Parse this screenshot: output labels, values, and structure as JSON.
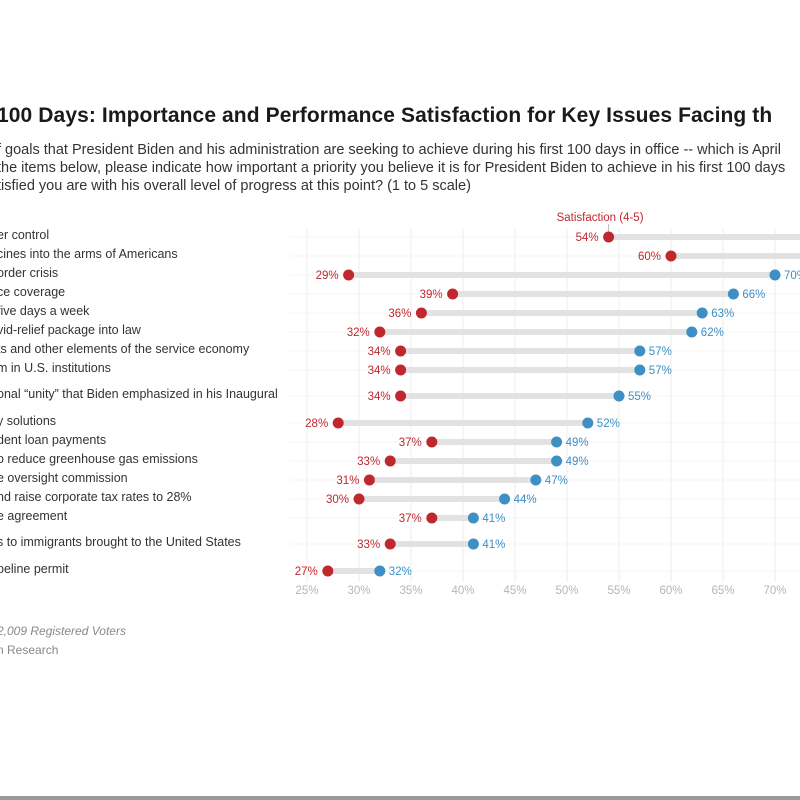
{
  "title": "100 Days: Importance and Performance Satisfaction for Key Issues Facing th",
  "subtitle": [
    "f goals that President Biden and his administration are seeking to achieve during his first 100 days in office -- which is April",
    "the items below, please indicate how important a priority you believe it is for President Biden to achieve in his first 100 days",
    "tisfied you are with his overall level of progress at this point? (1 to 5 scale)"
  ],
  "footer": {
    "sample": "2,009 Registered Voters",
    "source": "n Research"
  },
  "colors": {
    "satisfaction": "#c0282d",
    "importance": "#3d8fc4",
    "connector": "#e2e2e2",
    "grid": "#eeeeee",
    "tick": "#b5b5b5"
  },
  "chart_data": {
    "type": "dumbbell",
    "title": "100 Days: Importance and Performance Satisfaction for Key Issues Facing th",
    "xlabel": "",
    "ylabel": "",
    "xlim": [
      25,
      70
    ],
    "x_ticks": [
      "25%",
      "30%",
      "35%",
      "40%",
      "45%",
      "50%",
      "55%",
      "60%",
      "65%",
      "70%"
    ],
    "grid": true,
    "annotation": "Satisfaction (4-5)",
    "series": [
      {
        "name": "Satisfaction (4-5)",
        "color": "#c0282d"
      },
      {
        "name": "Importance",
        "color": "#3d8fc4"
      }
    ],
    "rows": [
      {
        "label": "er control",
        "satisfaction": 54,
        "importance": null
      },
      {
        "label": "cines into the arms of Americans",
        "satisfaction": 60,
        "importance": null
      },
      {
        "label": "order crisis",
        "satisfaction": 29,
        "importance": 70
      },
      {
        "label": "ce coverage",
        "satisfaction": 39,
        "importance": 66
      },
      {
        "label": "five days a week",
        "satisfaction": 36,
        "importance": 63
      },
      {
        "label": "vid-relief package into law",
        "satisfaction": 32,
        "importance": 62
      },
      {
        "label": "ts and other elements of the service economy",
        "satisfaction": 34,
        "importance": 57
      },
      {
        "label": "m in U.S. institutions",
        "satisfaction": 34,
        "importance": 57
      },
      {
        "label": "onal “unity” that Biden emphasized in his Inaugural",
        "satisfaction": 34,
        "importance": 55
      },
      {
        "label": "y solutions",
        "satisfaction": 28,
        "importance": 52
      },
      {
        "label": "dent loan payments",
        "satisfaction": 37,
        "importance": 49
      },
      {
        "label": "o reduce greenhouse gas emissions",
        "satisfaction": 33,
        "importance": 49
      },
      {
        "label": "e oversight commission",
        "satisfaction": 31,
        "importance": 47
      },
      {
        "label": "nd raise corporate tax rates to 28%",
        "satisfaction": 30,
        "importance": 44
      },
      {
        "label": "e agreement",
        "satisfaction": 37,
        "importance": 41
      },
      {
        "label": "s to immigrants brought to the United States",
        "satisfaction": 33,
        "importance": 41
      },
      {
        "label": "peline permit",
        "satisfaction": 27,
        "importance": 32
      }
    ]
  }
}
